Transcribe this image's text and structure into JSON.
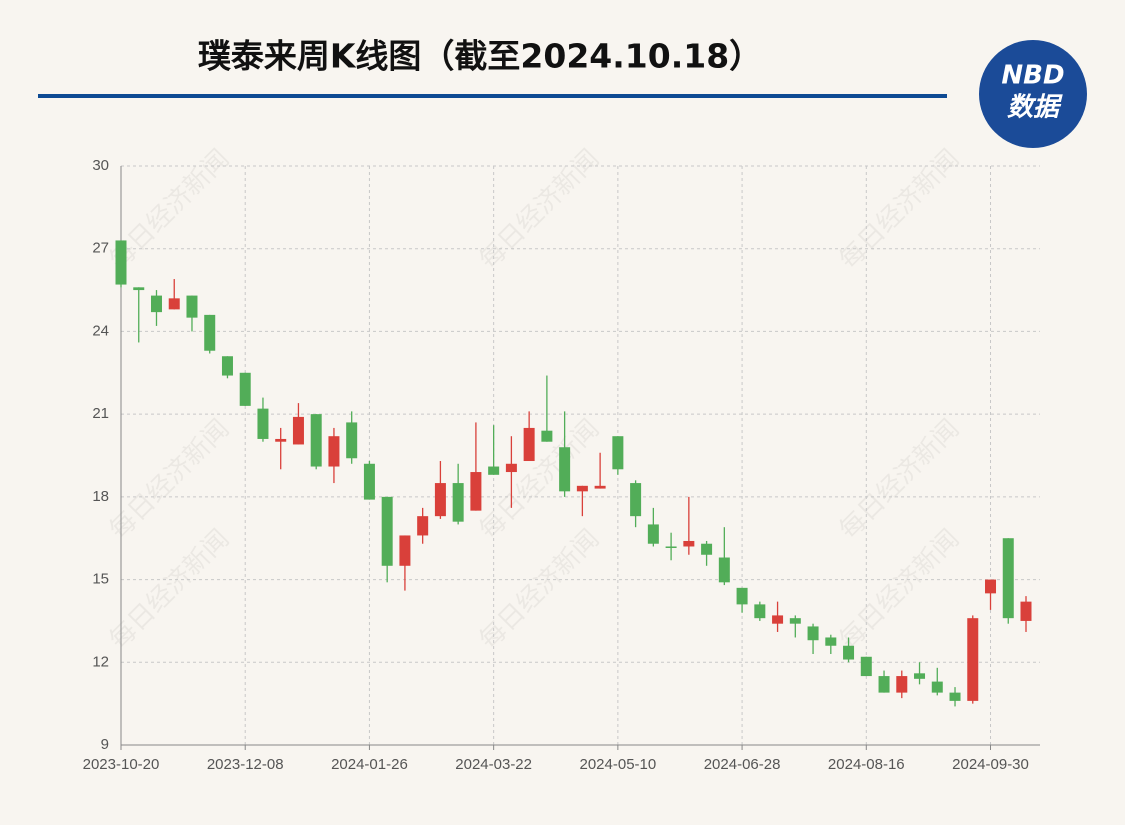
{
  "chart_data": {
    "type": "candlestick",
    "title": "璞泰来周K线图（截至2024.10.18）",
    "categories": [
      "2023-10-20",
      null,
      null,
      null,
      null,
      null,
      null,
      "2023-12-08",
      null,
      null,
      null,
      null,
      null,
      null,
      "2024-01-26",
      null,
      null,
      null,
      null,
      null,
      null,
      "2024-03-22",
      null,
      null,
      null,
      null,
      null,
      null,
      "2024-05-10",
      null,
      null,
      null,
      null,
      null,
      null,
      "2024-06-28",
      null,
      null,
      null,
      null,
      null,
      null,
      "2024-08-16",
      null,
      null,
      null,
      null,
      null,
      null,
      "2024-09-30",
      null,
      null
    ],
    "open": [
      27.3,
      25.6,
      25.3,
      24.8,
      25.3,
      24.6,
      23.1,
      22.5,
      21.2,
      20.0,
      19.9,
      21.0,
      19.1,
      20.7,
      19.2,
      18.0,
      15.5,
      16.6,
      17.3,
      18.5,
      17.5,
      19.1,
      18.9,
      19.3,
      20.4,
      19.8,
      18.2,
      18.3,
      20.2,
      18.5,
      17.0,
      16.2,
      16.2,
      16.3,
      15.8,
      14.7,
      14.1,
      13.4,
      13.6,
      13.3,
      12.9,
      12.6,
      12.2,
      11.5,
      10.9,
      11.6,
      11.3,
      10.9,
      10.6,
      14.5,
      16.5,
      13.5
    ],
    "high": [
      27.3,
      25.6,
      25.5,
      25.9,
      25.3,
      24.6,
      23.1,
      22.5,
      21.6,
      20.5,
      21.4,
      21.0,
      20.5,
      21.1,
      19.3,
      18.0,
      16.6,
      17.6,
      19.3,
      19.2,
      20.7,
      20.6,
      20.2,
      21.1,
      22.4,
      21.1,
      18.4,
      19.6,
      20.2,
      18.6,
      17.6,
      16.7,
      18.0,
      16.4,
      16.9,
      14.7,
      14.2,
      14.2,
      13.7,
      13.4,
      13.0,
      12.9,
      12.2,
      11.7,
      11.7,
      12.0,
      11.8,
      11.1,
      13.7,
      15.0,
      16.5,
      14.4
    ],
    "low": [
      25.6,
      23.6,
      24.2,
      24.8,
      24.0,
      23.2,
      22.3,
      21.3,
      20.0,
      19.0,
      19.9,
      19.0,
      18.5,
      19.2,
      17.9,
      14.9,
      14.6,
      16.3,
      17.2,
      17.0,
      17.5,
      18.8,
      17.6,
      19.3,
      20.0,
      18.0,
      17.3,
      18.3,
      18.8,
      16.9,
      16.2,
      15.7,
      15.9,
      15.5,
      14.8,
      13.8,
      13.5,
      13.1,
      12.9,
      12.3,
      12.3,
      12.0,
      11.5,
      10.9,
      10.7,
      11.2,
      10.8,
      10.4,
      10.5,
      13.9,
      13.4,
      13.1
    ],
    "close": [
      25.7,
      25.5,
      24.7,
      25.2,
      24.5,
      23.3,
      22.4,
      21.3,
      20.1,
      20.1,
      20.9,
      19.1,
      20.2,
      19.4,
      17.9,
      15.5,
      16.6,
      17.3,
      18.5,
      17.1,
      18.9,
      18.8,
      19.2,
      20.5,
      20.0,
      18.2,
      18.4,
      18.4,
      19.0,
      17.3,
      16.3,
      16.15,
      16.4,
      15.9,
      14.9,
      14.1,
      13.6,
      13.7,
      13.4,
      12.8,
      12.6,
      12.1,
      11.5,
      10.9,
      11.5,
      11.4,
      10.9,
      10.6,
      13.6,
      15.0,
      13.6,
      14.2
    ],
    "up_color": "#d9403a",
    "down_color": "#52ad58",
    "ylim": [
      9,
      30
    ],
    "yticks": [
      9,
      12,
      15,
      18,
      21,
      24,
      27,
      30
    ],
    "grid": true
  },
  "logo": {
    "top": "NBD",
    "bottom": "数据"
  },
  "watermark": "每日经济新闻"
}
